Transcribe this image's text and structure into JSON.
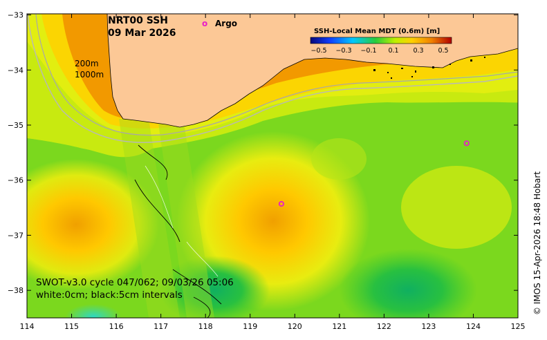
{
  "title": {
    "line1": "NRT00 SSH",
    "line2": "09 Mar 2026"
  },
  "legend_marker": {
    "symbol": "o",
    "label": "Argo",
    "color": "#e81ec8"
  },
  "colorbar": {
    "title": "SSH-Local Mean MDT (0.6m) [m]",
    "ticks": [
      "−0.5",
      "−0.3",
      "−0.1",
      "0.1",
      "0.3",
      "0.5"
    ],
    "stops": [
      "#08087a",
      "#1040ff",
      "#00c8ff",
      "#28cc3c",
      "#bff000",
      "#ffd000",
      "#f08000",
      "#b00000"
    ]
  },
  "isobaths": {
    "label_200": "200m",
    "label_1000": "1000m"
  },
  "swot_text": {
    "line1": "SWOT-v3.0 cycle 047/062; 09/03/26 05:06",
    "line2": "white:0cm; black:5cm intervals"
  },
  "axes": {
    "x_ticks": [
      "114",
      "115",
      "116",
      "117",
      "118",
      "119",
      "120",
      "121",
      "122",
      "123",
      "124",
      "125"
    ],
    "y_ticks": [
      "−33",
      "−34",
      "−35",
      "−36",
      "−37",
      "−38"
    ]
  },
  "credit": "© IMOS 15-Apr-2026 18:48 Hobart",
  "colors": {
    "land": "#fcc896",
    "background_field": "#7bd81e"
  },
  "argo_floats": [
    {
      "lon": 119.7,
      "lat": -36.43
    },
    {
      "lon": 123.85,
      "lat": -35.33
    }
  ]
}
